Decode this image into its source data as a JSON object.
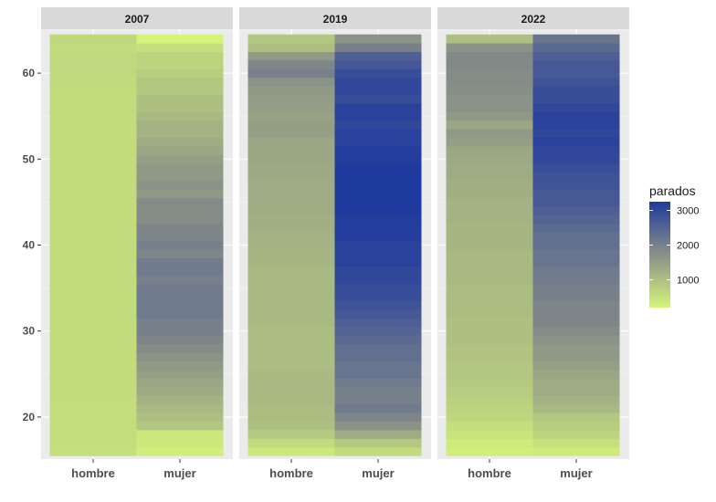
{
  "chart_data": {
    "type": "heatmap",
    "facet_labels": [
      "2007",
      "2019",
      "2022"
    ],
    "x_categories": [
      "hombre",
      "mujer"
    ],
    "y_range": [
      16,
      64
    ],
    "ylim": [
      15,
      65
    ],
    "y_ticks": [
      20,
      30,
      40,
      50,
      60
    ],
    "legend": {
      "title": "parados",
      "ticks": [
        1000,
        2000,
        3000
      ],
      "color_min": "#d4f57a",
      "color_mid": "#8a9087",
      "color_max": "#1f3a9e",
      "value_min": 200,
      "value_max": 3250
    },
    "facets": [
      {
        "label": "2007",
        "series": [
          {
            "name": "hombre",
            "values": [
              520,
              540,
              560,
              560,
              560,
              560,
              560,
              570,
              570,
              570,
              580,
              580,
              580,
              580,
              580,
              580,
              590,
              590,
              590,
              590,
              590,
              590,
              590,
              590,
              590,
              590,
              590,
              590,
              590,
              590,
              590,
              590,
              590,
              590,
              590,
              590,
              590,
              590,
              590,
              590,
              590,
              590,
              600,
              610,
              620,
              620,
              620,
              600,
              640
            ]
          },
          {
            "name": "mujer",
            "values": [
              300,
              400,
              400,
              900,
              1000,
              1100,
              1200,
              1300,
              1400,
              1500,
              1600,
              1700,
              1800,
              1900,
              2000,
              2000,
              2100,
              2100,
              2100,
              2100,
              2000,
              2100,
              2100,
              1900,
              2000,
              1900,
              1900,
              1800,
              1800,
              1800,
              1600,
              1700,
              1600,
              1600,
              1500,
              1400,
              1300,
              1200,
              1200,
              1100,
              1000,
              1000,
              900,
              900,
              800,
              700,
              700,
              500,
              200
            ]
          }
        ]
      },
      {
        "label": "2019",
        "series": [
          {
            "name": "hombre",
            "values": [
              400,
              600,
              850,
              1000,
              1050,
              1050,
              1100,
              1100,
              1100,
              1100,
              1050,
              1050,
              1050,
              1050,
              1050,
              1100,
              1100,
              1100,
              1100,
              1100,
              1100,
              1100,
              1150,
              1150,
              1200,
              1200,
              1250,
              1250,
              1300,
              1300,
              1300,
              1300,
              1350,
              1350,
              1400,
              1400,
              1400,
              1500,
              1500,
              1450,
              1500,
              1550,
              1600,
              1700,
              2000,
              1900,
              1600,
              1000,
              900
            ]
          },
          {
            "name": "mujer",
            "values": [
              600,
              900,
              1300,
              1700,
              1900,
              2100,
              2000,
              2000,
              2100,
              2200,
              2200,
              2300,
              2300,
              2400,
              2500,
              2600,
              2700,
              2800,
              2900,
              2900,
              3000,
              3000,
              3100,
              3100,
              3100,
              3200,
              3200,
              3200,
              3300,
              3300,
              3300,
              3300,
              3300,
              3300,
              3200,
              3200,
              3100,
              3100,
              3000,
              3100,
              3100,
              2900,
              3000,
              3000,
              2900,
              2700,
              2600,
              2000,
              1700
            ]
          }
        ]
      },
      {
        "label": "2022",
        "series": [
          {
            "name": "hombre",
            "values": [
              300,
              350,
              450,
              550,
              650,
              700,
              750,
              800,
              850,
              900,
              900,
              950,
              950,
              1000,
              1000,
              1000,
              1050,
              1050,
              1050,
              1050,
              1100,
              1100,
              1100,
              1100,
              1150,
              1150,
              1150,
              1200,
              1200,
              1200,
              1250,
              1250,
              1300,
              1300,
              1350,
              1400,
              1500,
              1600,
              1400,
              1600,
              1700,
              1700,
              1750,
              1800,
              1800,
              1850,
              1850,
              1700,
              1000
            ]
          },
          {
            "name": "mujer",
            "values": [
              350,
              500,
              700,
              800,
              900,
              1100,
              1200,
              1300,
              1300,
              1400,
              1500,
              1600,
              1600,
              1700,
              1800,
              1900,
              1900,
              1900,
              2000,
              2000,
              2100,
              2100,
              2200,
              2200,
              2300,
              2300,
              2400,
              2500,
              2600,
              2700,
              2700,
              2800,
              2800,
              2900,
              3000,
              3000,
              3100,
              3000,
              3100,
              3100,
              3000,
              2900,
              2900,
              2800,
              2700,
              2700,
              2600,
              2400,
              2200
            ]
          }
        ]
      }
    ],
    "grid": true
  }
}
